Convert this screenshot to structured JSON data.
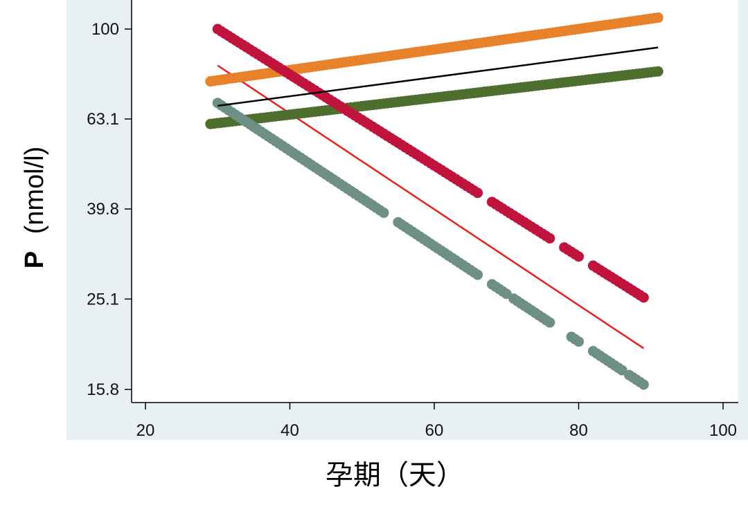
{
  "chart_data": {
    "type": "scatter",
    "scale_y": "log",
    "xlabel": "孕期（天）",
    "ylabel_bold": "P",
    "ylabel_rest": "(nmol/l)",
    "xlim": [
      20,
      100
    ],
    "ylim": [
      15.8,
      100
    ],
    "x_ticks": [
      20,
      40,
      60,
      80,
      100
    ],
    "x_tick_labels": [
      "20",
      "40",
      "60",
      "80",
      "100"
    ],
    "y_ticks": [
      15.8,
      25.1,
      39.8,
      63.1,
      100
    ],
    "y_tick_labels": [
      "15.8",
      "25.1",
      "39.8",
      "63.1",
      "100"
    ],
    "grid": false,
    "colors": {
      "plot_bg": "#e8f0f4",
      "orange": "#e8822a",
      "green": "#4e6e2e",
      "crimson": "#c0143c",
      "gray": "#6e8f86",
      "fit_black": "#000000",
      "fit_red": "#ee1c1c"
    },
    "series": [
      {
        "color": "#e8822a",
        "kind": "points",
        "x_start": 29,
        "x_end": 91,
        "y_start": 76.5,
        "y_end": 106
      },
      {
        "color": "#4e6e2e",
        "kind": "points",
        "x_start": 29,
        "x_end": 91,
        "y_start": 61.5,
        "y_end": 80.5
      },
      {
        "color": "#c0143c",
        "kind": "points",
        "x_start": 30,
        "x_end": 89,
        "y_start": 100,
        "y_end": 25.3,
        "gaps": [
          [
            66,
            68
          ],
          [
            76,
            78
          ],
          [
            80,
            82
          ]
        ]
      },
      {
        "color": "#6e8f86",
        "kind": "points",
        "x_start": 30,
        "x_end": 89,
        "y_start": 68.5,
        "y_end": 16.2,
        "gaps": [
          [
            53,
            55
          ],
          [
            66,
            68
          ],
          [
            70,
            71
          ],
          [
            76,
            79
          ],
          [
            80,
            82
          ],
          [
            86,
            87
          ]
        ]
      },
      {
        "color": "#000000",
        "kind": "fit",
        "x_start": 30,
        "x_end": 91,
        "y_start": 67.5,
        "y_end": 91
      }
    ],
    "fit_red": {
      "color": "#ee1c1c",
      "x_start": 30,
      "x_end": 89,
      "y_start": 83,
      "y_end": 19.5
    }
  }
}
